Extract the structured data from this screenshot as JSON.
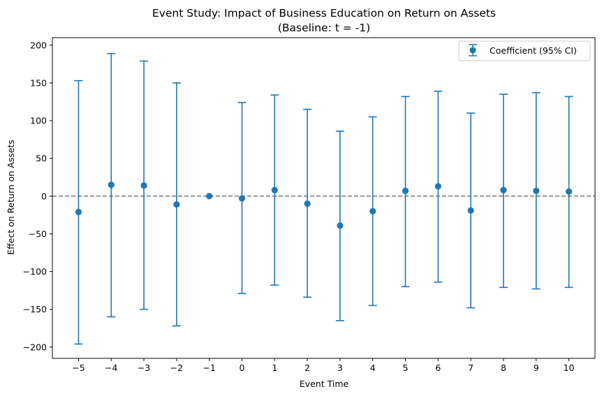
{
  "chart_data": {
    "type": "errorbar",
    "title_line1": "Event Study: Impact of Business Education on Return on Assets",
    "title_line2": "(Baseline: t = -1)",
    "xlabel": "Event Time",
    "ylabel": "Effect on Return on Assets",
    "xlim": [
      -5.8,
      10.8
    ],
    "ylim": [
      -215,
      210
    ],
    "yticks": [
      -200,
      -150,
      -100,
      -50,
      0,
      50,
      100,
      150,
      200
    ],
    "ytick_labels": [
      "−200",
      "−150",
      "−100",
      "−50",
      "0",
      "50",
      "100",
      "150",
      "200"
    ],
    "xticks": [
      -5,
      -4,
      -3,
      -2,
      -1,
      0,
      1,
      2,
      3,
      4,
      5,
      6,
      7,
      8,
      9,
      10
    ],
    "xtick_labels": [
      "−5",
      "−4",
      "−3",
      "−2",
      "−1",
      "0",
      "1",
      "2",
      "3",
      "4",
      "5",
      "6",
      "7",
      "8",
      "9",
      "10"
    ],
    "reference_line": 0,
    "legend_label": "Coefficient (95% CI)",
    "legend_position": "top-right",
    "color": "#1f77b4",
    "series": [
      {
        "name": "Coefficient (95% CI)",
        "x": [
          -5,
          -4,
          -3,
          -2,
          -1,
          0,
          1,
          2,
          3,
          4,
          5,
          6,
          7,
          8,
          9,
          10
        ],
        "y": [
          -21,
          15,
          14,
          -11,
          0,
          -3,
          8,
          -10,
          -39,
          -20,
          7,
          13,
          -19,
          8,
          7,
          6
        ],
        "ci_low": [
          -196,
          -160,
          -150,
          -172,
          0,
          -129,
          -118,
          -134,
          -165,
          -145,
          -120,
          -114,
          -148,
          -121,
          -123,
          -121
        ],
        "ci_high": [
          153,
          189,
          179,
          150,
          0,
          124,
          134,
          115,
          86,
          105,
          132,
          139,
          110,
          135,
          137,
          132
        ]
      }
    ]
  }
}
